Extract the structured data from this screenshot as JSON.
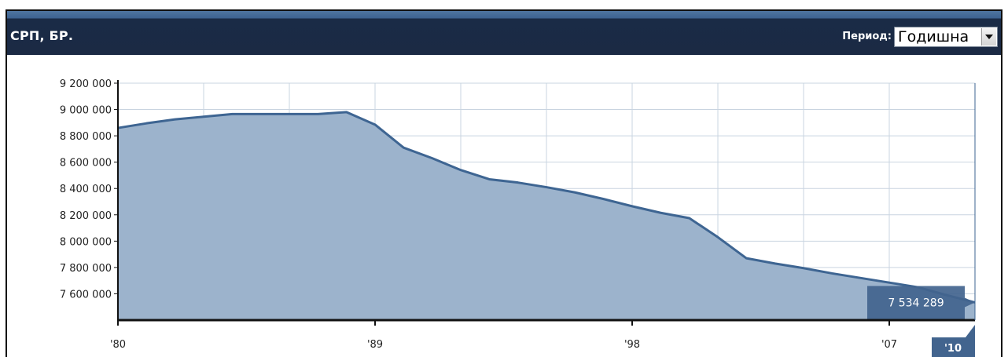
{
  "header": {
    "title": "СРП, БР.",
    "period_label": "Период:",
    "period_value": "Годишна"
  },
  "colors": {
    "header_bg": "#1b2a44",
    "area_fill": "#9cb3cc",
    "line": "#3e6592",
    "grid": "#c9d4e0",
    "badge": "#42648e"
  },
  "icons": {
    "dropdown": "chevron-down-icon"
  },
  "chart_data": {
    "type": "area",
    "title": "",
    "xlabel": "",
    "ylabel": "",
    "ylim": [
      7400000,
      9200000
    ],
    "xlim": [
      1980,
      2010
    ],
    "grid": true,
    "y_ticks": [
      {
        "value": 9200000,
        "label": "9 200 000"
      },
      {
        "value": 9000000,
        "label": "9 000 000"
      },
      {
        "value": 8800000,
        "label": "8 800 000"
      },
      {
        "value": 8600000,
        "label": "8 600 000"
      },
      {
        "value": 8400000,
        "label": "8 400 000"
      },
      {
        "value": 8200000,
        "label": "8 200 000"
      },
      {
        "value": 8000000,
        "label": "8 000 000"
      },
      {
        "value": 7800000,
        "label": "7 800 000"
      },
      {
        "value": 7600000,
        "label": "7 600 000"
      }
    ],
    "x_ticks": [
      {
        "value": 1980,
        "label": "'80"
      },
      {
        "value": 1989,
        "label": "'89"
      },
      {
        "value": 1998,
        "label": "'98"
      },
      {
        "value": 2007,
        "label": "'07"
      }
    ],
    "x_gridlines": [
      1980,
      1983,
      1986,
      1989,
      1992,
      1995,
      1998,
      2001,
      2004,
      2007,
      2010
    ],
    "series": [
      {
        "x": [
          1980,
          1981,
          1982,
          1983,
          1984,
          1985,
          1986,
          1987,
          1988,
          1989,
          1990,
          1991,
          1992,
          1993,
          1994,
          1995,
          1996,
          1997,
          1998,
          1999,
          2000,
          2001,
          2002,
          2003,
          2004,
          2005,
          2006,
          2007,
          2008,
          2009,
          2010
        ],
        "values": [
          8860000,
          8895000,
          8925000,
          8945000,
          8965000,
          8965000,
          8965000,
          8965000,
          8980000,
          8885000,
          8710000,
          8630000,
          8540000,
          8470000,
          8445000,
          8410000,
          8370000,
          8320000,
          8265000,
          8215000,
          8175000,
          8030000,
          7870000,
          7830000,
          7795000,
          7755000,
          7720000,
          7685000,
          7650000,
          7590000,
          7534289
        ]
      }
    ],
    "last_value_label": "7 534 289",
    "current_year_label": "'10"
  }
}
